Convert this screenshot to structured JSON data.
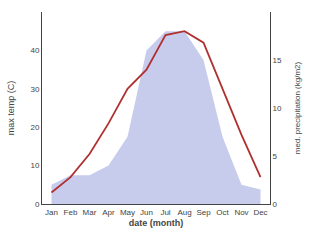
{
  "chart_data": {
    "type": "line",
    "xlabel": "date (month)",
    "ylabel": "max temp (C)",
    "y2label": "med. precipitation (kg/m2)",
    "categories": [
      "Jan",
      "Feb",
      "Mar",
      "Apr",
      "May",
      "Jun",
      "Jul",
      "Aug",
      "Sep",
      "Oct",
      "Nov",
      "Dec"
    ],
    "series": [
      {
        "type": "area",
        "color": "#c8ccec",
        "axis": "y2",
        "values": [
          2,
          3,
          3,
          4,
          7,
          16,
          18,
          18,
          15,
          7,
          2,
          1.5
        ]
      },
      {
        "type": "line",
        "color": "#b03030",
        "values": [
          3,
          7,
          13,
          21,
          30,
          35,
          44,
          45,
          42,
          30,
          18,
          7
        ]
      }
    ],
    "ylim": [
      0,
      50
    ],
    "yticks": [
      0,
      10,
      20,
      30,
      40
    ],
    "y2lim": [
      0,
      20
    ],
    "y2ticks": [
      0,
      5,
      10,
      15
    ],
    "grid": false
  }
}
